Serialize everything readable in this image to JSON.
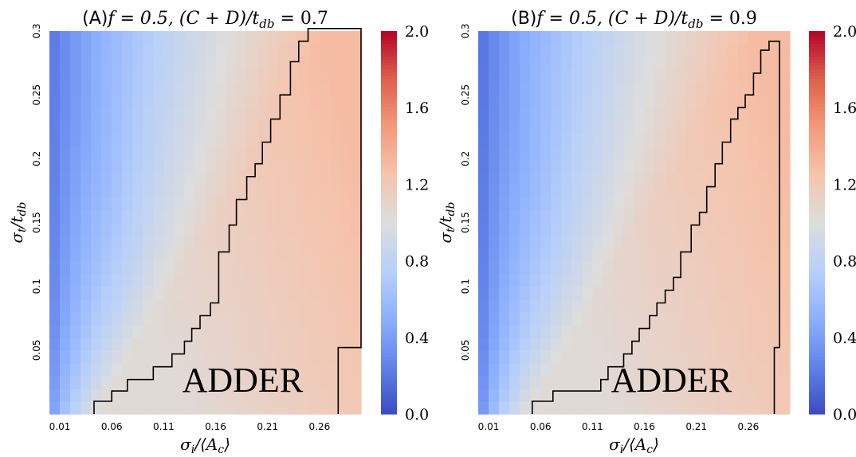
{
  "chart_data": [
    {
      "type": "heatmap",
      "title": "(A)f = 0.5, (C + D)/t_db = 0.7",
      "title_parts": {
        "prefix": "(A)",
        "math": "f = 0.5, (C + D)/t",
        "sub": "db",
        "suffix": " = 0.7"
      },
      "xlabel": "σi/⟨Ac⟩",
      "ylabel": "σt/tdb",
      "x_tick_labels": [
        "0.01",
        "0.06",
        "0.11",
        "0.16",
        "0.21",
        "0.26"
      ],
      "x_tick_values": [
        0.01,
        0.06,
        0.11,
        0.16,
        0.21,
        0.26
      ],
      "y_tick_labels": [
        "0.3",
        "0.25",
        "0.2",
        "0.15",
        "0.1",
        "0.05"
      ],
      "y_tick_values": [
        0.3,
        0.25,
        0.2,
        0.15,
        0.1,
        0.05
      ],
      "xlim": [
        0.0,
        0.3
      ],
      "ylim": [
        0.0,
        0.3
      ],
      "annotation": "ADDER",
      "adder_boundary": [
        [
          0.043,
          0.0
        ],
        [
          0.043,
          0.01
        ],
        [
          0.06,
          0.01
        ],
        [
          0.06,
          0.018
        ],
        [
          0.075,
          0.018
        ],
        [
          0.075,
          0.027
        ],
        [
          0.1,
          0.027
        ],
        [
          0.1,
          0.037
        ],
        [
          0.118,
          0.037
        ],
        [
          0.118,
          0.047
        ],
        [
          0.13,
          0.047
        ],
        [
          0.13,
          0.057
        ],
        [
          0.137,
          0.057
        ],
        [
          0.137,
          0.067
        ],
        [
          0.145,
          0.067
        ],
        [
          0.145,
          0.077
        ],
        [
          0.155,
          0.077
        ],
        [
          0.155,
          0.087
        ],
        [
          0.163,
          0.087
        ],
        [
          0.163,
          0.127
        ],
        [
          0.173,
          0.127
        ],
        [
          0.173,
          0.148
        ],
        [
          0.18,
          0.148
        ],
        [
          0.18,
          0.168
        ],
        [
          0.19,
          0.168
        ],
        [
          0.19,
          0.186
        ],
        [
          0.198,
          0.186
        ],
        [
          0.198,
          0.196
        ],
        [
          0.205,
          0.196
        ],
        [
          0.205,
          0.213
        ],
        [
          0.213,
          0.213
        ],
        [
          0.213,
          0.231
        ],
        [
          0.222,
          0.231
        ],
        [
          0.222,
          0.25
        ],
        [
          0.232,
          0.25
        ],
        [
          0.232,
          0.276
        ],
        [
          0.24,
          0.276
        ],
        [
          0.24,
          0.292
        ],
        [
          0.249,
          0.292
        ],
        [
          0.249,
          0.302
        ],
        [
          0.3,
          0.302
        ],
        [
          0.3,
          0.052
        ],
        [
          0.278,
          0.052
        ],
        [
          0.278,
          0.0
        ]
      ]
    },
    {
      "type": "heatmap",
      "title": "(B)f = 0.5, (C + D)/t_db = 0.9",
      "title_parts": {
        "prefix": "(B)",
        "math": "f = 0.5, (C + D)/t",
        "sub": "db",
        "suffix": " = 0.9"
      },
      "xlabel": "σi/⟨Ac⟩",
      "ylabel": "σt/tdb",
      "x_tick_labels": [
        "0.01",
        "0.06",
        "0.11",
        "0.16",
        "0.21",
        "0.26"
      ],
      "x_tick_values": [
        0.01,
        0.06,
        0.11,
        0.16,
        0.21,
        0.26
      ],
      "y_tick_labels": [
        "0.3",
        "0.25",
        "0.2",
        "0.15",
        "0.1",
        "0.05"
      ],
      "y_tick_values": [
        0.3,
        0.25,
        0.2,
        0.15,
        0.1,
        0.05
      ],
      "xlim": [
        0.0,
        0.3
      ],
      "ylim": [
        0.0,
        0.3
      ],
      "annotation": "ADDER",
      "adder_boundary": [
        [
          0.052,
          0.0
        ],
        [
          0.052,
          0.01
        ],
        [
          0.072,
          0.01
        ],
        [
          0.072,
          0.018
        ],
        [
          0.118,
          0.018
        ],
        [
          0.118,
          0.027
        ],
        [
          0.125,
          0.027
        ],
        [
          0.125,
          0.037
        ],
        [
          0.14,
          0.037
        ],
        [
          0.14,
          0.047
        ],
        [
          0.148,
          0.047
        ],
        [
          0.148,
          0.057
        ],
        [
          0.155,
          0.057
        ],
        [
          0.155,
          0.067
        ],
        [
          0.165,
          0.067
        ],
        [
          0.165,
          0.077
        ],
        [
          0.172,
          0.077
        ],
        [
          0.172,
          0.087
        ],
        [
          0.18,
          0.087
        ],
        [
          0.18,
          0.097
        ],
        [
          0.188,
          0.097
        ],
        [
          0.188,
          0.107
        ],
        [
          0.195,
          0.107
        ],
        [
          0.195,
          0.127
        ],
        [
          0.205,
          0.127
        ],
        [
          0.205,
          0.148
        ],
        [
          0.213,
          0.148
        ],
        [
          0.213,
          0.158
        ],
        [
          0.22,
          0.158
        ],
        [
          0.22,
          0.178
        ],
        [
          0.228,
          0.178
        ],
        [
          0.228,
          0.196
        ],
        [
          0.235,
          0.196
        ],
        [
          0.235,
          0.213
        ],
        [
          0.243,
          0.213
        ],
        [
          0.243,
          0.231
        ],
        [
          0.25,
          0.231
        ],
        [
          0.25,
          0.24
        ],
        [
          0.257,
          0.24
        ],
        [
          0.257,
          0.25
        ],
        [
          0.265,
          0.25
        ],
        [
          0.265,
          0.267
        ],
        [
          0.272,
          0.267
        ],
        [
          0.272,
          0.285
        ],
        [
          0.28,
          0.285
        ],
        [
          0.28,
          0.292
        ],
        [
          0.29,
          0.292
        ],
        [
          0.29,
          0.052
        ],
        [
          0.285,
          0.052
        ],
        [
          0.285,
          0.0
        ]
      ]
    }
  ],
  "colorbar": {
    "tick_labels": [
      "2.0",
      "1.6",
      "1.2",
      "0.8",
      "0.4",
      "0.0"
    ],
    "tick_values": [
      2.0,
      1.6,
      1.2,
      0.8,
      0.4,
      0.0
    ],
    "vmin": 0.0,
    "vmax": 2.0,
    "colormap": "coolwarm",
    "colors": {
      "low": "#3b4cc0",
      "mid": "#dddddd",
      "high": "#b40426"
    }
  }
}
